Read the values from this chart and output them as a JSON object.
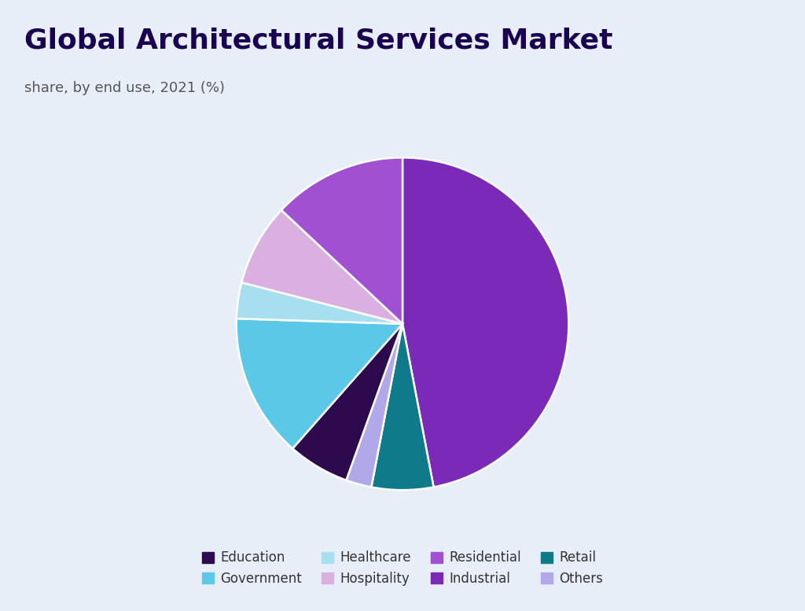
{
  "title": "Global Architectural Services Market",
  "subtitle": "share, by end use, 2021 (%)",
  "labels_row1": [
    "Education",
    "Government",
    "Healthcare",
    "Hospitality"
  ],
  "labels_row2": [
    "Residential",
    "Industrial",
    "Retail",
    "Others"
  ],
  "labels": [
    "Industrial",
    "Retail",
    "Others",
    "Education",
    "Government",
    "Healthcare",
    "Hospitality",
    "Residential"
  ],
  "values": [
    47.0,
    6.0,
    2.5,
    6.0,
    14.0,
    3.5,
    8.0,
    13.0
  ],
  "colors": [
    "#7b2ab8",
    "#0e7a8a",
    "#b0a8e8",
    "#2d0a4e",
    "#5bc8e8",
    "#a8dff0",
    "#d9b0e0",
    "#a050d0"
  ],
  "legend_labels": [
    "Education",
    "Government",
    "Healthcare",
    "Hospitality",
    "Residential",
    "Industrial",
    "Retail",
    "Others"
  ],
  "legend_colors": [
    "#2d0a4e",
    "#5bc8e8",
    "#a8dff0",
    "#d9b0e0",
    "#a050d0",
    "#7b2ab8",
    "#0e7a8a",
    "#b0a8e8"
  ],
  "background_color": "#e8eef8",
  "title_color": "#1a0050",
  "subtitle_color": "#555555",
  "title_fontsize": 26,
  "subtitle_fontsize": 13,
  "legend_fontsize": 12,
  "startangle": 90
}
